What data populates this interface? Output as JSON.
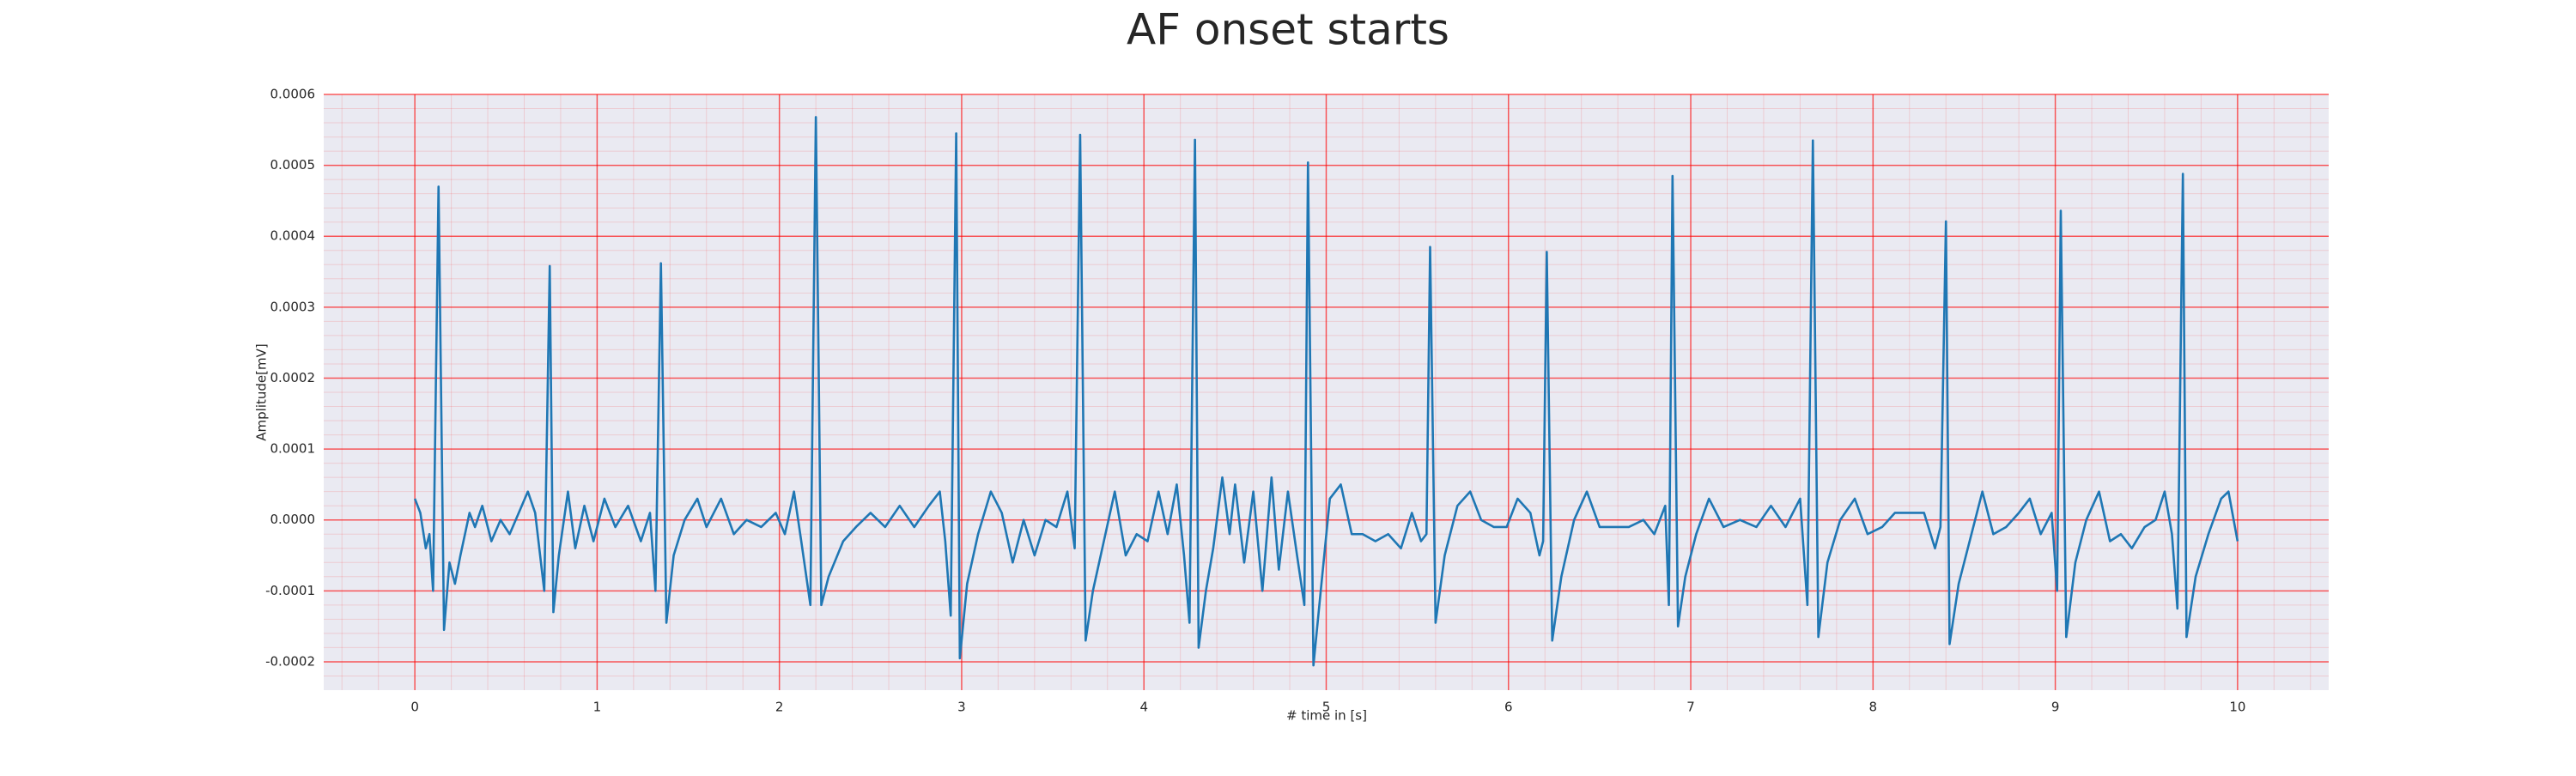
{
  "chart_data": {
    "type": "line",
    "title": "AF onset starts",
    "x_label": "# time in [s]",
    "y_label": "Amplitude[mV]",
    "color": "#1f77b4",
    "grid": true,
    "minor_grid": true,
    "xlim": [
      -0.5,
      10.5
    ],
    "xticks": [
      0,
      1,
      2,
      3,
      4,
      5,
      6,
      7,
      8,
      9,
      10
    ],
    "ylim": [
      -0.00024,
      0.0006
    ],
    "yticks": [
      -0.0002,
      -0.0001,
      {
        "value": 0,
        "label": "0.0000"
      },
      0.0001,
      0.0002,
      0.0003,
      0.0004,
      0.0005,
      0.0006
    ],
    "x": [
      0.0,
      0.03,
      0.06,
      0.08,
      0.1,
      0.13,
      0.16,
      0.19,
      0.22,
      0.25,
      0.3,
      0.33,
      0.37,
      0.42,
      0.47,
      0.52,
      0.57,
      0.62,
      0.66,
      0.71,
      0.74,
      0.76,
      0.79,
      0.84,
      0.88,
      0.93,
      0.98,
      1.04,
      1.1,
      1.17,
      1.24,
      1.29,
      1.32,
      1.35,
      1.38,
      1.42,
      1.48,
      1.55,
      1.6,
      1.68,
      1.75,
      1.82,
      1.9,
      1.98,
      2.03,
      2.08,
      2.12,
      2.17,
      2.2,
      2.23,
      2.27,
      2.35,
      2.42,
      2.5,
      2.58,
      2.66,
      2.74,
      2.82,
      2.88,
      2.91,
      2.94,
      2.97,
      2.99,
      3.03,
      3.09,
      3.16,
      3.22,
      3.28,
      3.34,
      3.4,
      3.46,
      3.52,
      3.58,
      3.62,
      3.65,
      3.68,
      3.72,
      3.78,
      3.84,
      3.9,
      3.96,
      4.02,
      4.08,
      4.13,
      4.18,
      4.22,
      4.25,
      4.28,
      4.3,
      4.34,
      4.38,
      4.43,
      4.47,
      4.5,
      4.55,
      4.6,
      4.65,
      4.7,
      4.74,
      4.79,
      4.84,
      4.88,
      4.9,
      4.93,
      4.97,
      5.02,
      5.08,
      5.14,
      5.2,
      5.27,
      5.34,
      5.41,
      5.47,
      5.52,
      5.55,
      5.57,
      5.6,
      5.65,
      5.72,
      5.79,
      5.85,
      5.92,
      5.99,
      6.05,
      6.12,
      6.17,
      6.19,
      6.21,
      6.24,
      6.29,
      6.36,
      6.43,
      6.5,
      6.58,
      6.66,
      6.74,
      6.8,
      6.86,
      6.88,
      6.9,
      6.93,
      6.97,
      7.03,
      7.1,
      7.18,
      7.27,
      7.36,
      7.44,
      7.52,
      7.6,
      7.64,
      7.67,
      7.7,
      7.75,
      7.82,
      7.9,
      7.97,
      8.05,
      8.12,
      8.2,
      8.28,
      8.34,
      8.37,
      8.4,
      8.42,
      8.47,
      8.53,
      8.6,
      8.66,
      8.73,
      8.8,
      8.86,
      8.92,
      8.98,
      9.01,
      9.03,
      9.06,
      9.11,
      9.17,
      9.24,
      9.3,
      9.36,
      9.42,
      9.49,
      9.55,
      9.6,
      9.64,
      9.67,
      9.7,
      9.72,
      9.77,
      9.84,
      9.91,
      9.95,
      10.0
    ],
    "values": [
      3e-05,
      1e-05,
      -4e-05,
      -2e-05,
      -0.0001,
      0.00047,
      -0.000155,
      -6e-05,
      -9e-05,
      -5e-05,
      1e-05,
      -1e-05,
      2e-05,
      -3e-05,
      0.0,
      -2e-05,
      1e-05,
      4e-05,
      1e-05,
      -0.0001,
      0.000358,
      -0.00013,
      -5e-05,
      4e-05,
      -4e-05,
      2e-05,
      -3e-05,
      3e-05,
      -1e-05,
      2e-05,
      -3e-05,
      1e-05,
      -0.0001,
      0.000362,
      -0.000145,
      -5e-05,
      0.0,
      3e-05,
      -1e-05,
      3e-05,
      -2e-05,
      0.0,
      -1e-05,
      1e-05,
      -2e-05,
      4e-05,
      -3e-05,
      -0.00012,
      0.000568,
      -0.00012,
      -8e-05,
      -3e-05,
      -1e-05,
      1e-05,
      -1e-05,
      2e-05,
      -1e-05,
      2e-05,
      4e-05,
      -3e-05,
      -0.000135,
      0.000545,
      -0.000195,
      -9e-05,
      -2e-05,
      4e-05,
      1e-05,
      -6e-05,
      0.0,
      -5e-05,
      0.0,
      -1e-05,
      4e-05,
      -4e-05,
      0.000543,
      -0.00017,
      -0.0001,
      -3e-05,
      4e-05,
      -5e-05,
      -2e-05,
      -3e-05,
      4e-05,
      -2e-05,
      5e-05,
      -5e-05,
      -0.000145,
      0.000536,
      -0.00018,
      -0.0001,
      -4e-05,
      6e-05,
      -2e-05,
      5e-05,
      -6e-05,
      4e-05,
      -0.0001,
      6e-05,
      -7e-05,
      4e-05,
      -5e-05,
      -0.00012,
      0.000504,
      -0.000205,
      -0.0001,
      3e-05,
      5e-05,
      -2e-05,
      -2e-05,
      -3e-05,
      -2e-05,
      -4e-05,
      1e-05,
      -3e-05,
      -2e-05,
      0.000385,
      -0.000145,
      -5e-05,
      2e-05,
      4e-05,
      0.0,
      -1e-05,
      -1e-05,
      3e-05,
      1e-05,
      -5e-05,
      -3e-05,
      0.000378,
      -0.00017,
      -8e-05,
      0.0,
      4e-05,
      -1e-05,
      -1e-05,
      -1e-05,
      0.0,
      -2e-05,
      2e-05,
      -0.00012,
      0.000485,
      -0.00015,
      -8e-05,
      -2e-05,
      3e-05,
      -1e-05,
      0.0,
      -1e-05,
      2e-05,
      -1e-05,
      3e-05,
      -0.00012,
      0.000535,
      -0.000165,
      -6e-05,
      0.0,
      3e-05,
      -2e-05,
      -1e-05,
      1e-05,
      1e-05,
      1e-05,
      -4e-05,
      -1e-05,
      0.000421,
      -0.000175,
      -9e-05,
      -3e-05,
      4e-05,
      -2e-05,
      -1e-05,
      1e-05,
      3e-05,
      -2e-05,
      1e-05,
      -0.0001,
      0.000436,
      -0.000165,
      -6e-05,
      0.0,
      4e-05,
      -3e-05,
      -2e-05,
      -4e-05,
      -1e-05,
      0.0,
      4e-05,
      -2e-05,
      -0.000125,
      0.000488,
      -0.000165,
      -8e-05,
      -2e-05,
      3e-05,
      4e-05,
      -3e-05
    ]
  }
}
